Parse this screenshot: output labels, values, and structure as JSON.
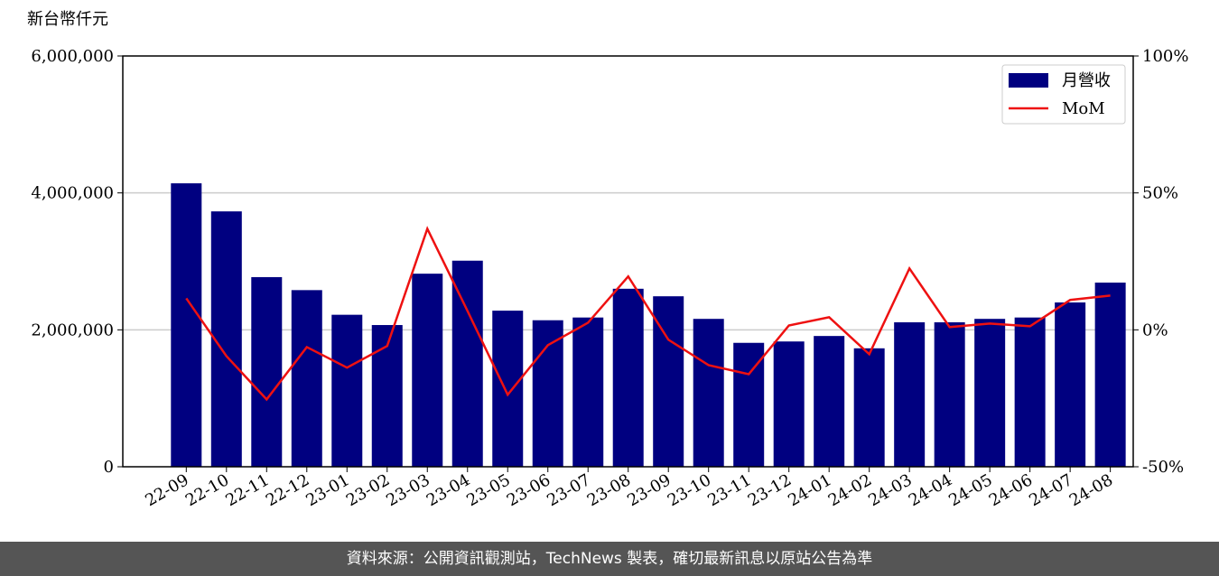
{
  "chart_data": {
    "type": "bar-line",
    "y_label": "新台幣仟元",
    "categories": [
      "22-09",
      "22-10",
      "22-11",
      "22-12",
      "23-01",
      "23-02",
      "23-03",
      "23-04",
      "23-05",
      "23-06",
      "23-07",
      "23-08",
      "23-09",
      "23-10",
      "23-11",
      "23-12",
      "24-01",
      "24-02",
      "24-03",
      "24-04",
      "24-05",
      "24-06",
      "24-07",
      "24-08"
    ],
    "series": [
      {
        "name": "月營收",
        "color": "#000080",
        "values": [
          4140000,
          3730000,
          2770000,
          2580000,
          2220000,
          2070000,
          2820000,
          3010000,
          2280000,
          2140000,
          2180000,
          2600000,
          2490000,
          2160000,
          1810000,
          1830000,
          1910000,
          1730000,
          2110000,
          2110000,
          2160000,
          2180000,
          2400000,
          2690000
        ]
      },
      {
        "name": "MoM",
        "color": "#ee1111",
        "axis": "y2",
        "values": [
          11.5,
          -9.6,
          -25.4,
          -6.3,
          -13.8,
          -5.9,
          36.9,
          6.9,
          -23.7,
          -5.6,
          2.6,
          19.5,
          -3.6,
          -12.9,
          -16.2,
          1.6,
          4.6,
          -8.9,
          22.4,
          1.0,
          2.3,
          1.3,
          10.9,
          12.5
        ]
      }
    ],
    "ylim": [
      0,
      6000000
    ],
    "yticks": [
      0,
      {
        "value": 2000000,
        "label": "2,000,000"
      },
      {
        "value": 4000000,
        "label": "4,000,000"
      },
      {
        "value": 6000000,
        "label": "6,000,000"
      }
    ],
    "y2lim": [
      -50,
      100
    ],
    "y2ticks": [
      {
        "value": -50,
        "label": "-50%"
      },
      {
        "value": 0,
        "label": "0%"
      },
      {
        "value": 50,
        "label": "50%"
      },
      {
        "value": 100,
        "label": "100%"
      }
    ],
    "grid": true,
    "legend": "upper right"
  },
  "footer": "資料來源：公開資訊觀測站，TechNews 製表，確切最新訊息以原站公告為準"
}
